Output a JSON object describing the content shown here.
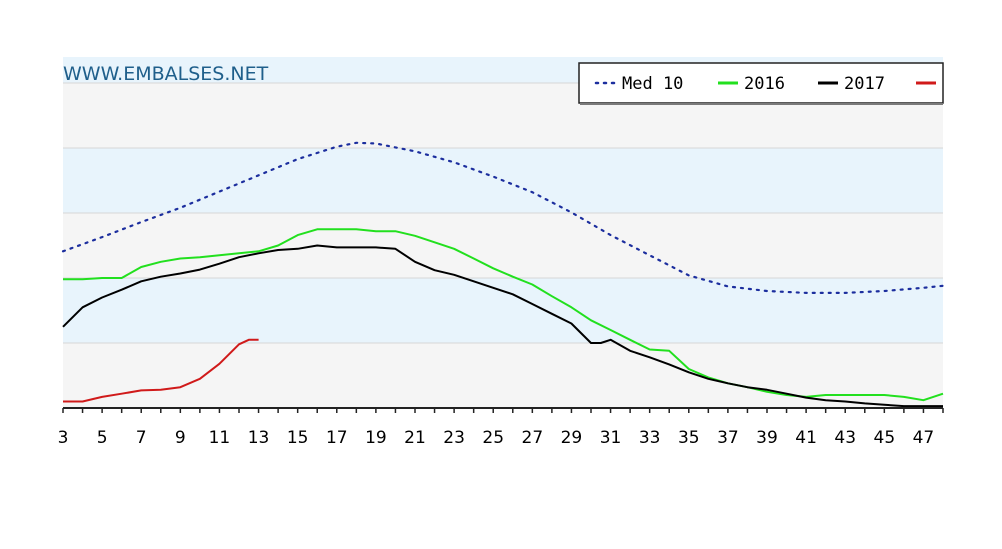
{
  "chart_data": {
    "type": "line",
    "watermark": "WWW.EMBALSES.NET",
    "xlim": [
      3,
      48
    ],
    "ylim": [
      0,
      5.4
    ],
    "grid": true,
    "legend_position": "top-right",
    "x_ticks": [
      3,
      5,
      7,
      9,
      11,
      13,
      15,
      17,
      19,
      21,
      23,
      25,
      27,
      29,
      31,
      33,
      35,
      37,
      39,
      41,
      43,
      45,
      47
    ],
    "series": [
      {
        "name": "Med 10",
        "color": "#1c2e9e",
        "style": "dotted",
        "x": [
          3,
          5,
          7,
          9,
          11,
          13,
          15,
          17,
          18,
          19,
          21,
          23,
          25,
          27,
          29,
          31,
          33,
          35,
          37,
          39,
          41,
          43,
          45,
          47,
          48
        ],
        "y": [
          2.41,
          2.63,
          2.86,
          3.08,
          3.33,
          3.58,
          3.83,
          4.02,
          4.08,
          4.07,
          3.95,
          3.78,
          3.56,
          3.32,
          3.01,
          2.66,
          2.35,
          2.04,
          1.87,
          1.8,
          1.77,
          1.77,
          1.8,
          1.85,
          1.88
        ]
      },
      {
        "name": "2016",
        "color": "#22e01e",
        "style": "solid",
        "x": [
          3,
          4,
          5,
          6,
          7,
          8,
          9,
          10,
          11,
          12,
          13,
          14,
          15,
          16,
          17,
          18,
          19,
          20,
          21,
          22,
          23,
          24,
          25,
          26,
          27,
          28,
          29,
          30,
          31,
          32,
          33,
          34,
          35,
          36,
          37,
          38,
          39,
          40,
          41,
          42,
          43,
          44,
          45,
          46,
          47,
          48
        ],
        "y": [
          1.98,
          1.98,
          2.0,
          2.0,
          2.17,
          2.25,
          2.3,
          2.32,
          2.35,
          2.38,
          2.41,
          2.5,
          2.66,
          2.75,
          2.75,
          2.75,
          2.72,
          2.72,
          2.65,
          2.55,
          2.45,
          2.3,
          2.15,
          2.02,
          1.9,
          1.72,
          1.55,
          1.35,
          1.2,
          1.05,
          0.9,
          0.88,
          0.6,
          0.47,
          0.38,
          0.32,
          0.25,
          0.2,
          0.17,
          0.2,
          0.2,
          0.2,
          0.2,
          0.17,
          0.12,
          0.22
        ]
      },
      {
        "name": "2017",
        "color": "#000000",
        "style": "solid",
        "x": [
          3,
          4,
          5,
          6,
          7,
          8,
          9,
          10,
          11,
          12,
          13,
          14,
          15,
          16,
          17,
          18,
          19,
          20,
          21,
          22,
          23,
          24,
          25,
          26,
          27,
          28,
          29,
          30,
          30.5,
          31,
          32,
          33,
          34,
          35,
          36,
          37,
          38,
          39,
          40,
          41,
          42,
          43,
          44,
          45,
          46,
          47,
          48
        ],
        "y": [
          1.25,
          1.55,
          1.7,
          1.82,
          1.95,
          2.02,
          2.07,
          2.13,
          2.22,
          2.32,
          2.38,
          2.43,
          2.45,
          2.5,
          2.47,
          2.47,
          2.47,
          2.45,
          2.25,
          2.12,
          2.05,
          1.95,
          1.85,
          1.75,
          1.6,
          1.45,
          1.3,
          1.0,
          1.0,
          1.05,
          0.88,
          0.78,
          0.67,
          0.55,
          0.45,
          0.38,
          0.32,
          0.28,
          0.22,
          0.16,
          0.12,
          0.1,
          0.07,
          0.05,
          0.03,
          0.03,
          0.03
        ]
      },
      {
        "name": "",
        "color": "#d01a1a",
        "style": "solid",
        "x": [
          3,
          4,
          5,
          6,
          7,
          8,
          9,
          10,
          11,
          12,
          12.5,
          13
        ],
        "y": [
          0.1,
          0.1,
          0.17,
          0.22,
          0.27,
          0.28,
          0.32,
          0.45,
          0.68,
          0.98,
          1.05,
          1.05
        ]
      }
    ]
  }
}
